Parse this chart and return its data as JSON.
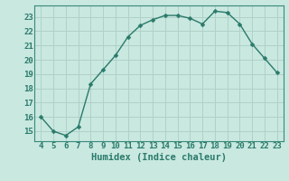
{
  "x": [
    4,
    5,
    6,
    7,
    8,
    9,
    10,
    11,
    12,
    13,
    14,
    15,
    16,
    17,
    18,
    19,
    20,
    21,
    22,
    23
  ],
  "y": [
    16.0,
    15.0,
    14.7,
    15.3,
    18.3,
    19.3,
    20.3,
    21.6,
    22.4,
    22.8,
    23.1,
    23.1,
    22.9,
    22.5,
    23.4,
    23.3,
    22.5,
    21.1,
    20.1,
    19.1
  ],
  "xlim": [
    3.5,
    23.5
  ],
  "ylim": [
    14.3,
    23.8
  ],
  "xticks": [
    4,
    5,
    6,
    7,
    8,
    9,
    10,
    11,
    12,
    13,
    14,
    15,
    16,
    17,
    18,
    19,
    20,
    21,
    22,
    23
  ],
  "yticks": [
    15,
    16,
    17,
    18,
    19,
    20,
    21,
    22,
    23
  ],
  "xlabel": "Humidex (Indice chaleur)",
  "line_color": "#2a7a6a",
  "marker_color": "#2a7a6a",
  "bg_color": "#c8e8e0",
  "grid_major_color": "#b0d0c8",
  "grid_minor_color": "#bcd8d0",
  "tick_label_color": "#2a7a6a",
  "xlabel_color": "#2a7a6a",
  "font_size_ticks": 6.5,
  "font_size_xlabel": 7.5
}
